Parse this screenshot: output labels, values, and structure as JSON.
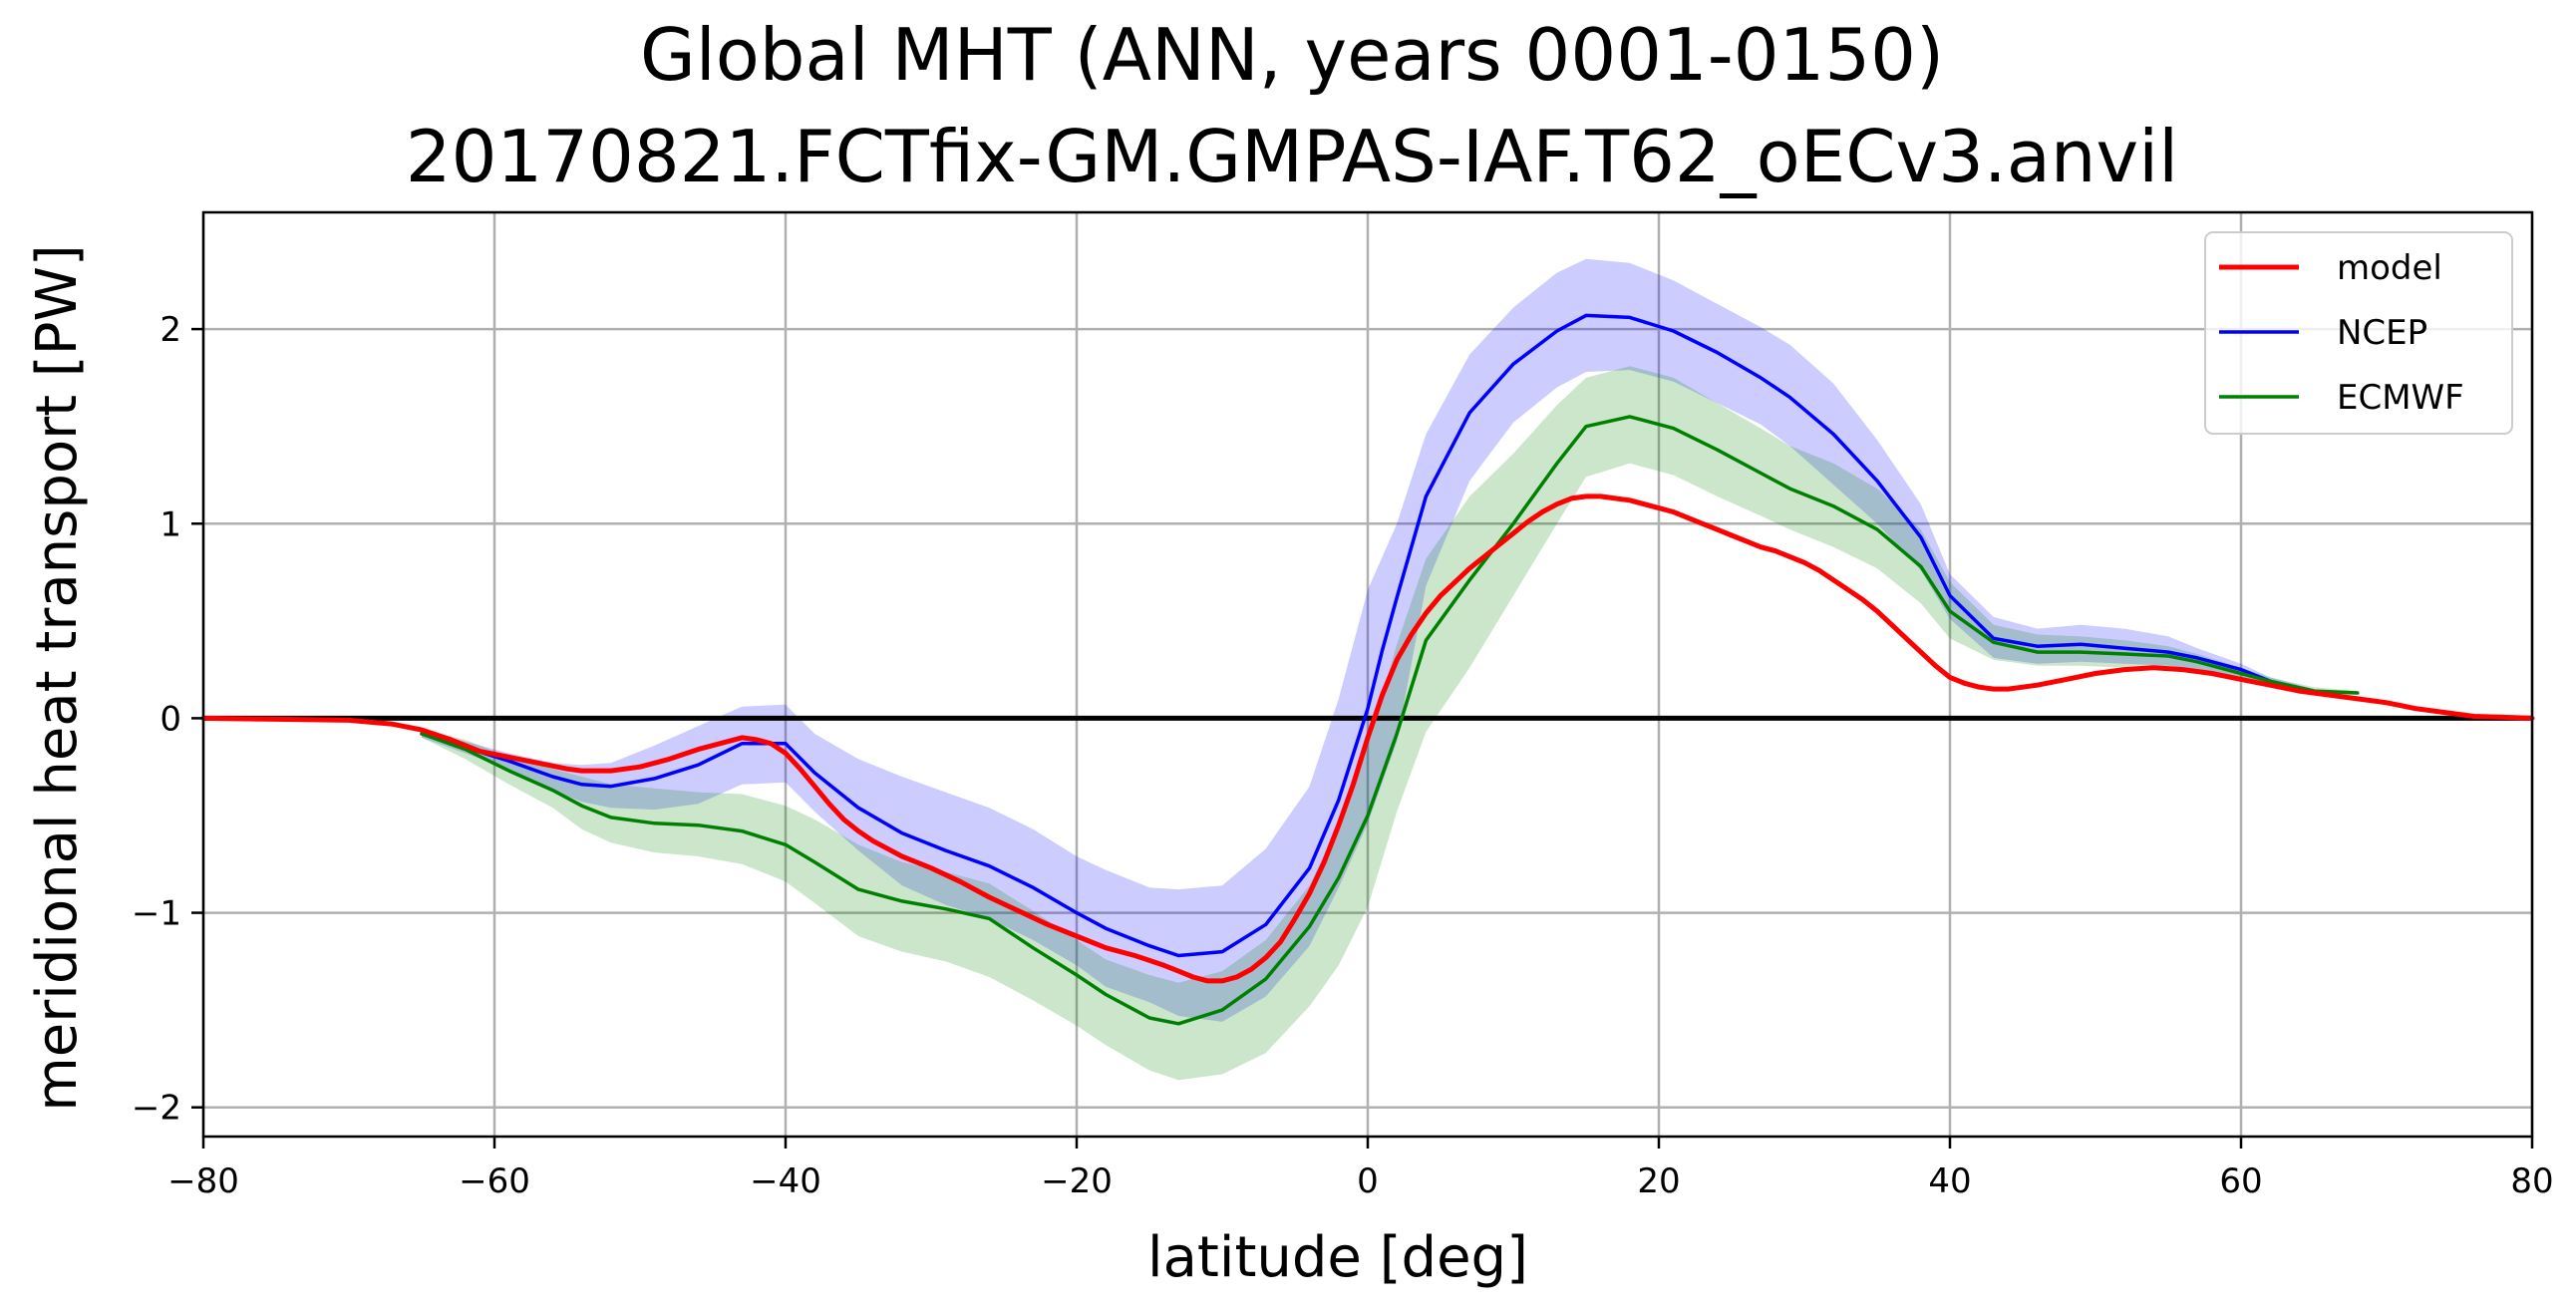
{
  "chart_data": {
    "type": "line",
    "title_line1": "Global MHT (ANN, years 0001-0150)",
    "title_line2": "20170821.FCTfix-GM.GMPAS-IAF.T62_oECv3.anvil",
    "xlabel": "latitude [deg]",
    "ylabel": "meridional heat transport [PW]",
    "xlim": [
      -80,
      80
    ],
    "ylim": [
      -2.15,
      2.6
    ],
    "xticks": [
      -80,
      -60,
      -40,
      -20,
      0,
      20,
      40,
      60,
      80
    ],
    "xtick_labels": [
      "−80",
      "−60",
      "−40",
      "−20",
      "0",
      "20",
      "40",
      "60",
      "80"
    ],
    "yticks": [
      -2,
      -1,
      0,
      1,
      2
    ],
    "ytick_labels": [
      "−2",
      "−1",
      "0",
      "1",
      "2"
    ],
    "grid": true,
    "legend_position": "top-right",
    "zero_line_color": "#000000",
    "series": [
      {
        "name": "model",
        "color": "#ff0000",
        "x": [
          -80,
          -75,
          -70,
          -67,
          -65,
          -63,
          -61,
          -59,
          -57,
          -55,
          -54,
          -52,
          -50,
          -48,
          -46,
          -44,
          -43,
          -42,
          -41,
          -40,
          -39,
          -38,
          -37,
          -36,
          -35,
          -34,
          -33,
          -32,
          -31,
          -30,
          -28,
          -26,
          -24,
          -22,
          -20,
          -18,
          -16,
          -14,
          -13,
          -12,
          -11,
          -10,
          -9,
          -8,
          -7,
          -6,
          -5,
          -4,
          -3,
          -2,
          -1,
          0,
          1,
          2,
          3,
          4,
          5,
          6,
          7,
          8,
          9,
          10,
          11,
          12,
          13,
          14,
          15,
          16,
          17,
          18,
          19,
          20,
          21,
          22,
          23,
          24,
          25,
          26,
          27,
          28,
          29,
          30,
          31,
          32,
          33,
          34,
          35,
          36,
          37,
          38,
          39,
          40,
          41,
          42,
          43,
          44,
          45,
          46,
          48,
          50,
          52,
          54,
          56,
          58,
          60,
          62,
          64,
          66,
          68,
          70,
          72,
          74,
          76,
          78,
          80
        ],
        "y": [
          0.0,
          -0.005,
          -0.01,
          -0.03,
          -0.06,
          -0.11,
          -0.17,
          -0.2,
          -0.23,
          -0.26,
          -0.27,
          -0.27,
          -0.25,
          -0.21,
          -0.16,
          -0.12,
          -0.1,
          -0.11,
          -0.13,
          -0.18,
          -0.26,
          -0.35,
          -0.44,
          -0.52,
          -0.58,
          -0.63,
          -0.67,
          -0.71,
          -0.74,
          -0.77,
          -0.84,
          -0.92,
          -0.99,
          -1.06,
          -1.12,
          -1.18,
          -1.22,
          -1.27,
          -1.3,
          -1.33,
          -1.35,
          -1.35,
          -1.33,
          -1.29,
          -1.23,
          -1.15,
          -1.03,
          -0.9,
          -0.74,
          -0.55,
          -0.34,
          -0.1,
          0.12,
          0.3,
          0.43,
          0.54,
          0.63,
          0.7,
          0.77,
          0.83,
          0.89,
          0.95,
          1.01,
          1.06,
          1.1,
          1.13,
          1.14,
          1.14,
          1.13,
          1.12,
          1.1,
          1.08,
          1.06,
          1.03,
          1.0,
          0.97,
          0.94,
          0.91,
          0.88,
          0.86,
          0.83,
          0.8,
          0.76,
          0.71,
          0.66,
          0.61,
          0.55,
          0.48,
          0.41,
          0.34,
          0.27,
          0.21,
          0.18,
          0.16,
          0.15,
          0.15,
          0.16,
          0.17,
          0.2,
          0.23,
          0.25,
          0.26,
          0.25,
          0.23,
          0.2,
          0.17,
          0.14,
          0.12,
          0.1,
          0.08,
          0.05,
          0.03,
          0.01,
          0.005,
          0.0
        ]
      },
      {
        "name": "NCEP",
        "color": "#0000ff",
        "x": [
          -65,
          -62,
          -59,
          -56,
          -54,
          -52,
          -49,
          -46,
          -43,
          -40,
          -38,
          -35,
          -32,
          -29,
          -26,
          -23,
          -20,
          -18,
          -15,
          -13,
          -10,
          -7,
          -4,
          -2,
          0,
          1,
          2,
          4,
          7,
          10,
          13,
          15,
          18,
          21,
          24,
          27,
          29,
          32,
          35,
          38,
          40,
          43,
          46,
          49,
          52,
          55,
          57,
          60,
          62,
          65
        ],
        "y": [
          -0.08,
          -0.15,
          -0.22,
          -0.3,
          -0.34,
          -0.35,
          -0.31,
          -0.24,
          -0.13,
          -0.13,
          -0.28,
          -0.46,
          -0.59,
          -0.68,
          -0.76,
          -0.87,
          -1.0,
          -1.08,
          -1.17,
          -1.22,
          -1.2,
          -1.06,
          -0.77,
          -0.42,
          0.05,
          0.35,
          0.62,
          1.14,
          1.57,
          1.82,
          1.99,
          2.07,
          2.06,
          1.99,
          1.88,
          1.75,
          1.65,
          1.46,
          1.22,
          0.93,
          0.63,
          0.41,
          0.37,
          0.38,
          0.36,
          0.34,
          0.31,
          0.25,
          0.19,
          0.14
        ]
      },
      {
        "name": "ECMWF",
        "color": "#008000",
        "x": [
          -65,
          -62,
          -59,
          -56,
          -54,
          -52,
          -49,
          -46,
          -43,
          -40,
          -38,
          -35,
          -32,
          -29,
          -26,
          -23,
          -20,
          -18,
          -15,
          -13,
          -10,
          -7,
          -4,
          -2,
          0,
          2,
          4,
          7,
          10,
          13,
          15,
          18,
          21,
          24,
          27,
          29,
          32,
          35,
          38,
          40,
          43,
          46,
          49,
          52,
          55,
          57,
          60,
          62,
          65,
          68
        ],
        "y": [
          -0.08,
          -0.16,
          -0.27,
          -0.37,
          -0.45,
          -0.51,
          -0.54,
          -0.55,
          -0.58,
          -0.65,
          -0.74,
          -0.88,
          -0.94,
          -0.98,
          -1.03,
          -1.18,
          -1.32,
          -1.42,
          -1.54,
          -1.57,
          -1.5,
          -1.34,
          -1.07,
          -0.82,
          -0.5,
          -0.08,
          0.4,
          0.71,
          1.0,
          1.31,
          1.5,
          1.55,
          1.49,
          1.38,
          1.26,
          1.18,
          1.09,
          0.97,
          0.78,
          0.55,
          0.39,
          0.34,
          0.34,
          0.33,
          0.32,
          0.29,
          0.23,
          0.19,
          0.14,
          0.13
        ]
      }
    ],
    "bands": [
      {
        "name": "NCEP",
        "color": "#0000ff",
        "opacity": 0.2,
        "x": [
          -65,
          -62,
          -59,
          -56,
          -54,
          -52,
          -49,
          -46,
          -43,
          -40,
          -38,
          -35,
          -32,
          -29,
          -26,
          -23,
          -20,
          -18,
          -15,
          -13,
          -10,
          -7,
          -4,
          -2,
          0,
          2,
          4,
          7,
          10,
          13,
          15,
          18,
          21,
          24,
          27,
          29,
          32,
          35,
          38,
          40,
          43,
          46,
          49,
          52,
          55,
          57,
          60,
          62,
          65
        ],
        "upper": [
          -0.06,
          -0.12,
          -0.18,
          -0.23,
          -0.24,
          -0.23,
          -0.14,
          -0.04,
          0.06,
          0.07,
          -0.08,
          -0.21,
          -0.3,
          -0.38,
          -0.46,
          -0.57,
          -0.71,
          -0.78,
          -0.87,
          -0.88,
          -0.86,
          -0.67,
          -0.35,
          0.1,
          0.66,
          1.0,
          1.46,
          1.87,
          2.11,
          2.29,
          2.36,
          2.34,
          2.25,
          2.13,
          2.01,
          1.92,
          1.72,
          1.43,
          1.1,
          0.74,
          0.52,
          0.46,
          0.48,
          0.46,
          0.42,
          0.36,
          0.28,
          0.21,
          0.15
        ],
        "lower": [
          -0.1,
          -0.18,
          -0.26,
          -0.37,
          -0.43,
          -0.46,
          -0.47,
          -0.44,
          -0.34,
          -0.33,
          -0.48,
          -0.68,
          -0.86,
          -0.96,
          -1.03,
          -1.14,
          -1.27,
          -1.38,
          -1.46,
          -1.53,
          -1.56,
          -1.43,
          -1.17,
          -0.87,
          -0.54,
          -0.12,
          0.68,
          1.22,
          1.52,
          1.7,
          1.78,
          1.79,
          1.73,
          1.62,
          1.51,
          1.4,
          1.2,
          1.0,
          0.76,
          0.51,
          0.31,
          0.28,
          0.29,
          0.28,
          0.27,
          0.25,
          0.21,
          0.17,
          0.13
        ]
      },
      {
        "name": "ECMWF",
        "color": "#008000",
        "opacity": 0.2,
        "x": [
          -65,
          -62,
          -59,
          -56,
          -54,
          -52,
          -49,
          -46,
          -43,
          -40,
          -38,
          -35,
          -32,
          -29,
          -26,
          -23,
          -20,
          -18,
          -15,
          -13,
          -10,
          -7,
          -4,
          -2,
          0,
          2,
          4,
          7,
          10,
          13,
          15,
          18,
          21,
          24,
          27,
          29,
          32,
          35,
          38,
          40,
          43,
          46,
          49,
          52,
          55,
          57,
          60,
          62,
          65,
          68
        ],
        "upper": [
          -0.06,
          -0.11,
          -0.2,
          -0.26,
          -0.3,
          -0.34,
          -0.36,
          -0.38,
          -0.39,
          -0.45,
          -0.52,
          -0.65,
          -0.74,
          -0.79,
          -0.85,
          -0.99,
          -1.14,
          -1.24,
          -1.32,
          -1.36,
          -1.3,
          -1.14,
          -0.86,
          -0.55,
          -0.14,
          0.38,
          0.82,
          1.14,
          1.36,
          1.61,
          1.75,
          1.81,
          1.75,
          1.62,
          1.49,
          1.4,
          1.31,
          1.18,
          0.97,
          0.7,
          0.48,
          0.43,
          0.42,
          0.4,
          0.37,
          0.33,
          0.26,
          0.21,
          0.16,
          0.14
        ],
        "lower": [
          -0.1,
          -0.21,
          -0.34,
          -0.46,
          -0.57,
          -0.64,
          -0.69,
          -0.71,
          -0.75,
          -0.84,
          -0.95,
          -1.12,
          -1.2,
          -1.25,
          -1.33,
          -1.45,
          -1.58,
          -1.68,
          -1.81,
          -1.86,
          -1.83,
          -1.72,
          -1.48,
          -1.27,
          -0.97,
          -0.48,
          -0.07,
          0.26,
          0.63,
          1.0,
          1.24,
          1.31,
          1.25,
          1.14,
          1.04,
          0.97,
          0.88,
          0.77,
          0.59,
          0.41,
          0.3,
          0.27,
          0.27,
          0.26,
          0.25,
          0.23,
          0.19,
          0.16,
          0.12,
          0.12
        ]
      }
    ]
  }
}
